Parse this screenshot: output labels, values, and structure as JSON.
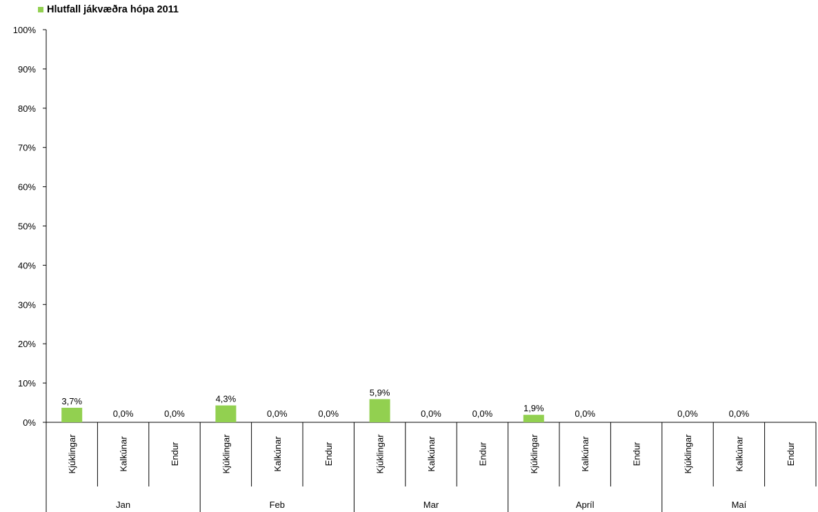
{
  "chart_data": {
    "type": "bar",
    "series": [
      {
        "name": "Hlutfall jákvæðra hópa 2011",
        "color": "#92d050",
        "groups": [
          {
            "month": "Jan",
            "items": [
              {
                "category": "Kjúklingar",
                "value": 3.7,
                "label": "3,7%"
              },
              {
                "category": "Kalkúnar",
                "value": 0.0,
                "label": "0,0%"
              },
              {
                "category": "Endur",
                "value": 0.0,
                "label": "0,0%"
              }
            ]
          },
          {
            "month": "Feb",
            "items": [
              {
                "category": "Kjúklingar",
                "value": 4.3,
                "label": "4,3%"
              },
              {
                "category": "Kalkúnar",
                "value": 0.0,
                "label": "0,0%"
              },
              {
                "category": "Endur",
                "value": 0.0,
                "label": "0,0%"
              }
            ]
          },
          {
            "month": "Mar",
            "items": [
              {
                "category": "Kjúklingar",
                "value": 5.9,
                "label": "5,9%"
              },
              {
                "category": "Kalkúnar",
                "value": 0.0,
                "label": "0,0%"
              },
              {
                "category": "Endur",
                "value": 0.0,
                "label": "0,0%"
              }
            ]
          },
          {
            "month": "Apríl",
            "items": [
              {
                "category": "Kjúklingar",
                "value": 1.9,
                "label": "1,9%"
              },
              {
                "category": "Kalkúnar",
                "value": 0.0,
                "label": "0,0%"
              },
              {
                "category": "Endur",
                "value": null,
                "label": ""
              }
            ]
          },
          {
            "month": "Maí",
            "items": [
              {
                "category": "Kjúklingar",
                "value": 0.0,
                "label": "0,0%"
              },
              {
                "category": "Kalkúnar",
                "value": 0.0,
                "label": "0,0%"
              },
              {
                "category": "Endur",
                "value": null,
                "label": ""
              }
            ]
          }
        ]
      }
    ],
    "yticks": [
      "0%",
      "10%",
      "20%",
      "30%",
      "40%",
      "50%",
      "60%",
      "70%",
      "80%",
      "90%",
      "100%"
    ],
    "ylim": [
      0,
      100
    ],
    "grid": false,
    "legend_position": "top-left"
  }
}
